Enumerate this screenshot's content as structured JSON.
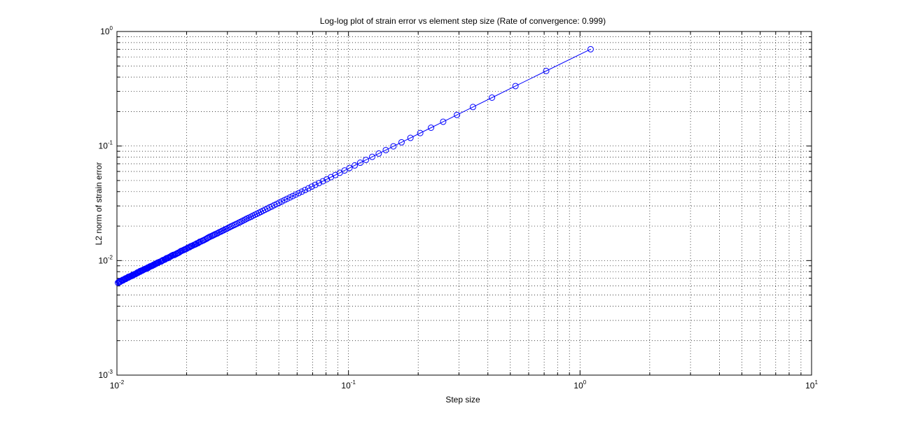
{
  "chart_data": {
    "type": "line",
    "title": "Log-log plot of strain error vs element step size (Rate of convergence: 0.999)",
    "xlabel": "Step size",
    "ylabel": "L2 norm of strain error",
    "x_scale": "log",
    "y_scale": "log",
    "xlim": [
      0.01,
      10
    ],
    "ylim": [
      0.001,
      1
    ],
    "grid": true,
    "grid_style": "dotted",
    "marker": "circle",
    "line_color": "#0000ff",
    "x_ticks": [
      {
        "base": "10",
        "exp": "-2"
      },
      {
        "base": "10",
        "exp": "-1"
      },
      {
        "base": "10",
        "exp": "0"
      },
      {
        "base": "10",
        "exp": "1"
      }
    ],
    "y_ticks": [
      {
        "base": "10",
        "exp": "-3"
      },
      {
        "base": "10",
        "exp": "-2"
      },
      {
        "base": "10",
        "exp": "-1"
      },
      {
        "base": "10",
        "exp": "0"
      }
    ],
    "series": [
      {
        "x": [
          1.1111,
          0.7143,
          0.5263,
          0.4167,
          0.3448,
          0.2941,
          0.2564,
          0.2273,
          0.2041,
          0.1852,
          0.1695,
          0.1563,
          0.1449,
          0.1351,
          0.1266,
          0.119,
          0.1124,
          0.1064,
          0.101,
          0.0962,
          0.0917,
          0.0877,
          0.084,
          0.0806,
          0.0775,
          0.0746,
          0.0719,
          0.0694,
          0.0671,
          0.0649,
          0.0629,
          0.061,
          0.0592,
          0.0575,
          0.0559,
          0.0543,
          0.0529,
          0.0515,
          0.0502,
          0.049,
          0.0478,
          0.0467,
          0.0456,
          0.0446,
          0.0436,
          0.0427,
          0.0418,
          0.041,
          0.0402,
          0.0394,
          0.0386,
          0.0379,
          0.0372,
          0.0365,
          0.0359,
          0.0353,
          0.0347,
          0.0341,
          0.0336,
          0.033,
          0.0325,
          0.032,
          0.0315,
          0.031,
          0.0306,
          0.0301,
          0.0297,
          0.0293,
          0.0289,
          0.0285,
          0.0281,
          0.0277,
          0.0273,
          0.027,
          0.0266,
          0.0263,
          0.026,
          0.0257,
          0.0253,
          0.025,
          0.0247,
          0.0245,
          0.0242,
          0.0239,
          0.0236,
          0.0234,
          0.0231,
          0.0228,
          0.0226,
          0.0224,
          0.0221,
          0.0219,
          0.0217,
          0.0215,
          0.0212,
          0.021,
          0.0208,
          0.0206,
          0.0204,
          0.0202,
          0.02,
          0.0198,
          0.0196,
          0.0195,
          0.0193,
          0.0191,
          0.0189,
          0.0188,
          0.0186,
          0.0184,
          0.0183,
          0.0181,
          0.018,
          0.0178,
          0.0177,
          0.0175,
          0.0174,
          0.0172,
          0.0171,
          0.017,
          0.0168,
          0.0167,
          0.0166,
          0.0164,
          0.0163,
          0.0162,
          0.0161,
          0.0159,
          0.0158,
          0.0157,
          0.0156,
          0.0155,
          0.0154,
          0.0152,
          0.0151,
          0.015,
          0.0149,
          0.0148,
          0.0147,
          0.0146,
          0.0145,
          0.0144,
          0.0143,
          0.0142,
          0.0141,
          0.014,
          0.0139,
          0.0138,
          0.0137,
          0.0136,
          0.0136,
          0.0135,
          0.0134,
          0.0133,
          0.0132,
          0.0131,
          0.013,
          0.013,
          0.0129,
          0.0128,
          0.0127,
          0.0126,
          0.0126,
          0.0125,
          0.0124,
          0.0123,
          0.0123,
          0.0122,
          0.0121,
          0.0121,
          0.012,
          0.0119,
          0.0119,
          0.0118,
          0.0117,
          0.0117,
          0.0116,
          0.0115,
          0.0115,
          0.0114,
          0.0113,
          0.0113,
          0.0112,
          0.0112,
          0.0111,
          0.011,
          0.011,
          0.0109,
          0.0109,
          0.0108,
          0.0108,
          0.0107,
          0.0107,
          0.0106,
          0.0106,
          0.0105,
          0.0105,
          0.0104,
          0.0104,
          0.0103,
          0.0103,
          0.0102,
          0.0102,
          0.0101
        ],
        "y": [
          0.7003,
          0.4524,
          0.334,
          0.2646,
          0.2191,
          0.1869,
          0.163,
          0.1445,
          0.1298,
          0.1178,
          0.1078,
          0.0994,
          0.0922,
          0.086,
          0.0805,
          0.0757,
          0.0715,
          0.0677,
          0.0643,
          0.0612,
          0.0584,
          0.0558,
          0.0535,
          0.0513,
          0.0493,
          0.0475,
          0.0458,
          0.0442,
          0.0427,
          0.0413,
          0.04,
          0.0388,
          0.0377,
          0.0366,
          0.0356,
          0.0346,
          0.0337,
          0.0328,
          0.032,
          0.0312,
          0.0305,
          0.0297,
          0.0291,
          0.0284,
          0.0278,
          0.0272,
          0.0266,
          0.0261,
          0.0256,
          0.0251,
          0.0246,
          0.0241,
          0.0237,
          0.0233,
          0.0229,
          0.0225,
          0.0221,
          0.0217,
          0.0214,
          0.021,
          0.0207,
          0.0204,
          0.0201,
          0.0198,
          0.0195,
          0.0192,
          0.0189,
          0.0187,
          0.0184,
          0.0182,
          0.0179,
          0.0177,
          0.0174,
          0.0172,
          0.017,
          0.0168,
          0.0166,
          0.0164,
          0.0162,
          0.016,
          0.0158,
          0.0156,
          0.0154,
          0.0152,
          0.015,
          0.0149,
          0.0147,
          0.0146,
          0.0144,
          0.0142,
          0.0141,
          0.0139,
          0.0138,
          0.0137,
          0.0135,
          0.0134,
          0.0133,
          0.0131,
          0.013,
          0.0129,
          0.0127,
          0.0126,
          0.0125,
          0.0124,
          0.0123,
          0.0122,
          0.0121,
          0.012,
          0.0118,
          0.0117,
          0.0116,
          0.0115,
          0.0114,
          0.0113,
          0.0112,
          0.0112,
          0.0111,
          0.011,
          0.0109,
          0.0108,
          0.0107,
          0.0106,
          0.0105,
          0.0105,
          0.0104,
          0.0103,
          0.0102,
          0.0101,
          0.0101,
          0.01,
          0.0099,
          0.0098,
          0.0098,
          0.0097,
          0.0096,
          0.0096,
          0.0095,
          0.0094,
          0.0094,
          0.0093,
          0.0092,
          0.0092,
          0.0091,
          0.009,
          0.009,
          0.0089,
          0.0089,
          0.0088,
          0.0087,
          0.0087,
          0.0086,
          0.0086,
          0.0085,
          0.0085,
          0.0084,
          0.0084,
          0.0083,
          0.0083,
          0.0082,
          0.0082,
          0.0081,
          0.0081,
          0.008,
          0.008,
          0.0079,
          0.0079,
          0.0078,
          0.0078,
          0.0077,
          0.0077,
          0.0076,
          0.0076,
          0.0076,
          0.0075,
          0.0075,
          0.0074,
          0.0074,
          0.0073,
          0.0073,
          0.0073,
          0.0072,
          0.0072,
          0.0072,
          0.0071,
          0.0071,
          0.007,
          0.007,
          0.007,
          0.0069,
          0.0069,
          0.0069,
          0.0068,
          0.0068,
          0.0068,
          0.0067,
          0.0067,
          0.0067,
          0.0066,
          0.0066,
          0.0066,
          0.0065,
          0.0065,
          0.0065,
          0.0064
        ]
      }
    ]
  }
}
